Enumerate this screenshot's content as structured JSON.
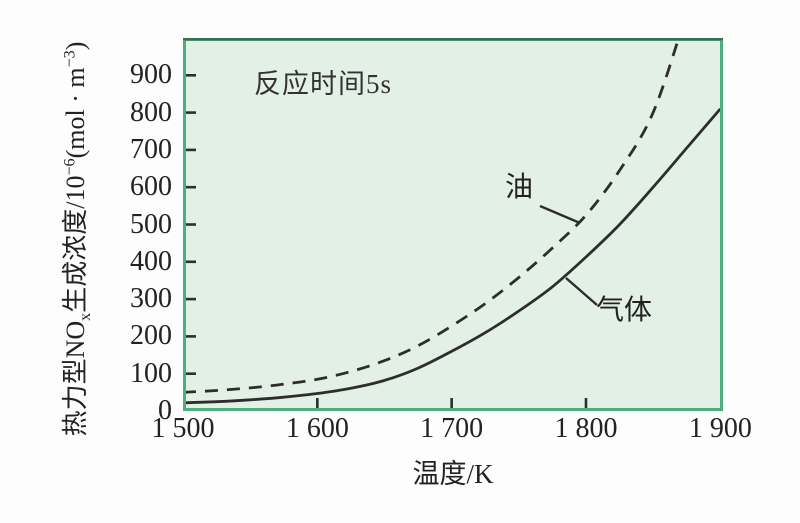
{
  "chart_data": {
    "type": "line",
    "title": "",
    "annotation": "反应时间5s",
    "xlabel": "温度/K",
    "ylabel": "热力型NOx生成浓度/10−6(mol·m−3)",
    "ylabel_parts": [
      {
        "t": "热力型NO"
      },
      {
        "t": "x",
        "sub": true
      },
      {
        "t": "生成浓度/10"
      },
      {
        "t": "−6",
        "sup": true
      },
      {
        "t": "(mol · m"
      },
      {
        "t": "−3",
        "sup": true
      },
      {
        "t": ")"
      }
    ],
    "xlim": [
      1500,
      1902
    ],
    "ylim": [
      0,
      1000
    ],
    "grid": false,
    "legend": "inline-labels",
    "x_ticks": [
      {
        "label": "1 500",
        "value": 1500
      },
      {
        "label": "1 600",
        "value": 1600
      },
      {
        "label": "1 700",
        "value": 1700
      },
      {
        "label": "1 800",
        "value": 1800
      },
      {
        "label": "1 900",
        "value": 1900
      }
    ],
    "x_tick_marks": [
      1600,
      1700,
      1800
    ],
    "y_ticks": [
      {
        "label": "900",
        "value": 900
      },
      {
        "label": "800",
        "value": 800
      },
      {
        "label": "700",
        "value": 700
      },
      {
        "label": "600",
        "value": 600
      },
      {
        "label": "500",
        "value": 500
      },
      {
        "label": "400",
        "value": 400
      },
      {
        "label": "300",
        "value": 300
      },
      {
        "label": "200",
        "value": 200
      },
      {
        "label": "100",
        "value": 100
      },
      {
        "label": "0",
        "value": 0
      }
    ],
    "series": [
      {
        "name": "油",
        "line_style": "dashed",
        "x": [
          1500,
          1525,
          1550,
          1575,
          1600,
          1625,
          1650,
          1675,
          1700,
          1725,
          1750,
          1775,
          1800,
          1825,
          1850,
          1873
        ],
        "y": [
          50,
          55,
          62,
          72,
          85,
          106,
          135,
          175,
          228,
          288,
          358,
          437,
          525,
          645,
          800,
          1045
        ]
      },
      {
        "name": "气体",
        "line_style": "solid",
        "x": [
          1500,
          1525,
          1550,
          1575,
          1600,
          1625,
          1650,
          1675,
          1700,
          1725,
          1750,
          1775,
          1800,
          1825,
          1850,
          1875,
          1900
        ],
        "y": [
          22,
          25,
          30,
          37,
          47,
          61,
          82,
          115,
          160,
          210,
          268,
          333,
          413,
          500,
          600,
          705,
          810
        ]
      }
    ],
    "colors": {
      "curve": "#2d2d2d",
      "frame": "#4fae7e",
      "frame_top": "#3a6b54",
      "plot_bg": "#e3f0e6",
      "tick": "#24342c",
      "text": "#222222"
    }
  }
}
